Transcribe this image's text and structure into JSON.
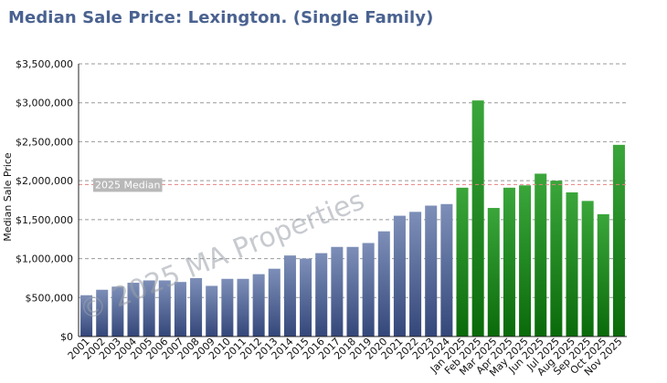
{
  "title": "Median Sale Price: Lexington. (Single Family)",
  "watermark": "© 2025 MA Properties",
  "colors": {
    "annual_top": "#7d8fb8",
    "annual_bottom": "#34477a",
    "monthly_top": "#3aa63a",
    "monthly_bottom": "#0a6a0a",
    "median_line": "#e88080",
    "grid": "#999999"
  },
  "chart_data": {
    "type": "bar",
    "ylabel": "Median Sale Price",
    "ylim": [
      0,
      3500000
    ],
    "yticks": [
      0,
      500000,
      1000000,
      1500000,
      2000000,
      2500000,
      3000000,
      3500000
    ],
    "ytick_labels": [
      "$0",
      "$500,000",
      "$1,000,000",
      "$1,500,000",
      "$2,000,000",
      "$2,500,000",
      "$3,000,000",
      "$3,500,000"
    ],
    "grid": true,
    "categories": [
      "2001",
      "2002",
      "2003",
      "2004",
      "2005",
      "2006",
      "2007",
      "2008",
      "2009",
      "2010",
      "2011",
      "2012",
      "2013",
      "2014",
      "2015",
      "2016",
      "2017",
      "2018",
      "2019",
      "2020",
      "2021",
      "2022",
      "2023",
      "2024",
      "Jan 2025",
      "Feb 2025",
      "Mar 2025",
      "Apr 2025",
      "May 2025",
      "Jun 2025",
      "Jul 2025",
      "Aug 2025",
      "Sep 2025",
      "Oct 2025",
      "Nov 2025"
    ],
    "values": [
      530000,
      600000,
      640000,
      690000,
      720000,
      720000,
      700000,
      750000,
      650000,
      740000,
      740000,
      800000,
      870000,
      1040000,
      1000000,
      1070000,
      1150000,
      1150000,
      1200000,
      1350000,
      1550000,
      1600000,
      1680000,
      1700000,
      1910000,
      3030000,
      1650000,
      1910000,
      1940000,
      2090000,
      2000000,
      1850000,
      1740000,
      1570000,
      2460000
    ],
    "groups": [
      "annual",
      "annual",
      "annual",
      "annual",
      "annual",
      "annual",
      "annual",
      "annual",
      "annual",
      "annual",
      "annual",
      "annual",
      "annual",
      "annual",
      "annual",
      "annual",
      "annual",
      "annual",
      "annual",
      "annual",
      "annual",
      "annual",
      "annual",
      "annual",
      "monthly",
      "monthly",
      "monthly",
      "monthly",
      "monthly",
      "monthly",
      "monthly",
      "monthly",
      "monthly",
      "monthly",
      "monthly"
    ],
    "reference_line": {
      "label": "2025 Median",
      "value": 1950000
    }
  }
}
